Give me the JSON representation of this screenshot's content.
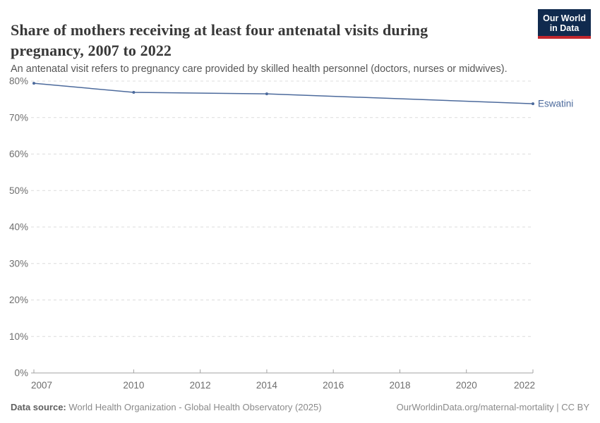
{
  "header": {
    "title": "Share of mothers receiving at least four antenatal visits during pregnancy, 2007 to 2022",
    "subtitle": "An antenatal visit refers to pregnancy care provided by skilled health personnel (doctors, nurses or midwives).",
    "logo": {
      "line1": "Our World",
      "line2": "in Data",
      "bg_color": "#102a4e",
      "accent_color": "#c1272d"
    }
  },
  "chart_data": {
    "type": "line",
    "title": "Share of mothers receiving at least four antenatal visits during pregnancy, 2007 to 2022",
    "xlabel": "",
    "ylabel": "",
    "xlim": [
      2007,
      2022
    ],
    "ylim": [
      0,
      80
    ],
    "grid": "horizontal-dashed",
    "legend_position": "line-end-label",
    "x_ticks": [
      2007,
      2010,
      2012,
      2014,
      2016,
      2018,
      2020,
      2022
    ],
    "y_ticks": [
      {
        "value": 0,
        "label": "0%"
      },
      {
        "value": 10,
        "label": "10%"
      },
      {
        "value": 20,
        "label": "20%"
      },
      {
        "value": 30,
        "label": "30%"
      },
      {
        "value": 40,
        "label": "40%"
      },
      {
        "value": 50,
        "label": "50%"
      },
      {
        "value": 60,
        "label": "60%"
      },
      {
        "value": 70,
        "label": "70%"
      },
      {
        "value": 80,
        "label": "80%"
      }
    ],
    "series": [
      {
        "name": "Eswatini",
        "color": "#4c6a9c",
        "points": [
          {
            "year": 2007,
            "value": 79.4
          },
          {
            "year": 2010,
            "value": 76.9
          },
          {
            "year": 2014,
            "value": 76.5
          },
          {
            "year": 2022,
            "value": 73.8
          }
        ]
      }
    ],
    "colors": {
      "gridline": "#dcdcdc",
      "axis_line": "#a3a3a3",
      "tick_label": "#6e6e6e"
    }
  },
  "footer": {
    "data_source_label": "Data source:",
    "data_source": "World Health Organization - Global Health Observatory (2025)",
    "credit": "OurWorldinData.org/maternal-mortality | CC BY"
  }
}
